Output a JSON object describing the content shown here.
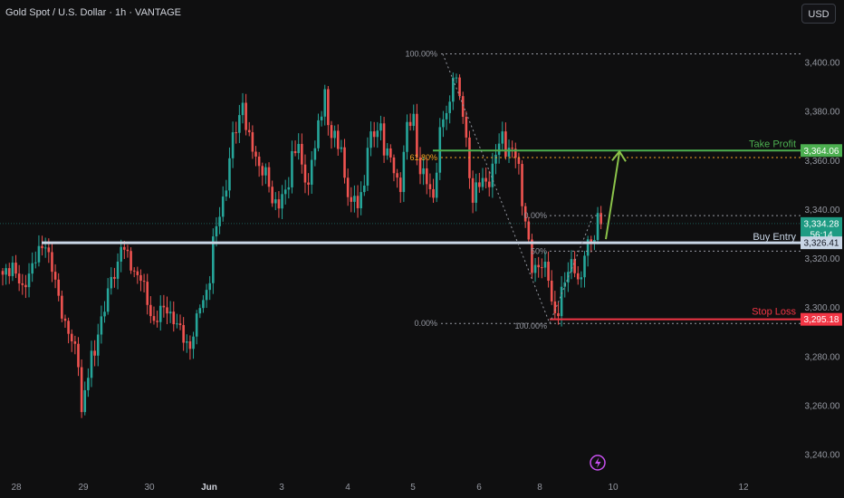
{
  "header": {
    "symbol_title": "Gold Spot / U.S. Dollar · 1h · VANTAGE",
    "currency_label": "USD"
  },
  "chart_data": {
    "type": "candlestick",
    "y_ticks": [
      "3,400.00",
      "3,380.00",
      "3,360.00",
      "3,340.00",
      "3,320.00",
      "3,300.00",
      "3,280.00",
      "3,260.00",
      "3,240.00"
    ],
    "y_tick_values": [
      3400,
      3380,
      3360,
      3340,
      3320,
      3300,
      3280,
      3260,
      3240
    ],
    "ylim": [
      3232,
      3415
    ],
    "x_ticks": [
      "28",
      "29",
      "30",
      "Jun",
      "3",
      "4",
      "5",
      "6",
      "8",
      "10",
      "12"
    ],
    "price_badges": {
      "take_profit": "3,364.06",
      "current_price": "3,334.28",
      "countdown": "56:14",
      "buy_entry": "3,326.41",
      "stop_loss": "3,295.18"
    },
    "annotations": {
      "take_profit": "Take Profit",
      "buy_entry": "Buy Entry",
      "stop_loss": "Stop Loss"
    },
    "fib_upper": {
      "level_100": "100.00%",
      "level_618": "61.80%"
    },
    "fib_lower": {
      "level_0_top": "0.00%",
      "level_mid": "50%",
      "level_100": "100.00%",
      "level_0_bottom": "0.00%"
    },
    "levels": {
      "take_profit": 3364.06,
      "buy_entry": 3326.41,
      "stop_loss": 3295.18,
      "current": 3334.28,
      "fib_high": 3403.5,
      "fib_618": 3361.2,
      "fib_lower_top": 3337.5,
      "fib_lower_bottom": 3293.5
    },
    "price_path": [
      [
        0,
        3312
      ],
      [
        3,
        3318
      ],
      [
        6,
        3306
      ],
      [
        8,
        3315
      ],
      [
        11,
        3322
      ],
      [
        13,
        3327
      ],
      [
        15,
        3316
      ],
      [
        17,
        3303
      ],
      [
        19,
        3294
      ],
      [
        21,
        3286
      ],
      [
        23,
        3278
      ],
      [
        24,
        3258
      ],
      [
        25,
        3266
      ],
      [
        27,
        3279
      ],
      [
        28,
        3281
      ],
      [
        29,
        3291
      ],
      [
        31,
        3300
      ],
      [
        33,
        3311
      ],
      [
        35,
        3318
      ],
      [
        36,
        3326
      ],
      [
        38,
        3320
      ],
      [
        40,
        3315
      ],
      [
        42,
        3312
      ],
      [
        44,
        3302
      ],
      [
        46,
        3294
      ],
      [
        48,
        3298
      ],
      [
        50,
        3300
      ],
      [
        52,
        3295
      ],
      [
        54,
        3290
      ],
      [
        56,
        3286
      ],
      [
        57,
        3284
      ],
      [
        59,
        3294
      ],
      [
        60,
        3301
      ],
      [
        62,
        3307
      ],
      [
        63,
        3312
      ],
      [
        64,
        3326
      ],
      [
        66,
        3339
      ],
      [
        68,
        3350
      ],
      [
        70,
        3369
      ],
      [
        72,
        3378
      ],
      [
        73,
        3385
      ],
      [
        74,
        3373
      ],
      [
        75,
        3368
      ],
      [
        77,
        3362
      ],
      [
        78,
        3358
      ],
      [
        80,
        3354
      ],
      [
        82,
        3344
      ],
      [
        84,
        3343
      ],
      [
        86,
        3346
      ],
      [
        87,
        3351
      ],
      [
        88,
        3363
      ],
      [
        90,
        3367
      ],
      [
        91,
        3355
      ],
      [
        93,
        3350
      ],
      [
        94,
        3361
      ],
      [
        96,
        3373
      ],
      [
        97,
        3378
      ],
      [
        98,
        3390
      ],
      [
        99,
        3374
      ],
      [
        101,
        3370
      ],
      [
        102,
        3363
      ],
      [
        103,
        3367
      ],
      [
        104,
        3352
      ],
      [
        106,
        3343
      ],
      [
        108,
        3342
      ],
      [
        110,
        3351
      ],
      [
        111,
        3367
      ],
      [
        113,
        3370
      ],
      [
        115,
        3375
      ],
      [
        116,
        3365
      ],
      [
        118,
        3360
      ],
      [
        120,
        3352
      ],
      [
        121,
        3350
      ],
      [
        122,
        3363
      ],
      [
        123,
        3373
      ],
      [
        125,
        3378
      ],
      [
        126,
        3363
      ],
      [
        127,
        3356
      ],
      [
        129,
        3351
      ],
      [
        131,
        3345
      ],
      [
        132,
        3358
      ],
      [
        133,
        3371
      ],
      [
        134,
        3376
      ],
      [
        135,
        3380
      ],
      [
        136,
        3383
      ],
      [
        137,
        3397
      ],
      [
        138,
        3393
      ],
      [
        139,
        3384
      ],
      [
        140,
        3379
      ],
      [
        141,
        3368
      ],
      [
        142,
        3355
      ],
      [
        143,
        3344
      ],
      [
        144,
        3348
      ],
      [
        146,
        3352
      ],
      [
        148,
        3352
      ],
      [
        149,
        3356
      ],
      [
        150,
        3362
      ],
      [
        151,
        3367
      ],
      [
        152,
        3371
      ],
      [
        153,
        3365
      ],
      [
        155,
        3363
      ],
      [
        156,
        3362
      ],
      [
        157,
        3357
      ],
      [
        158,
        3344
      ],
      [
        159,
        3336
      ],
      [
        160,
        3325
      ],
      [
        161,
        3315
      ],
      [
        162,
        3316
      ],
      [
        164,
        3319
      ],
      [
        165,
        3316
      ],
      [
        166,
        3311
      ],
      [
        167,
        3302
      ],
      [
        168,
        3297
      ],
      [
        169,
        3300
      ],
      [
        170,
        3307
      ],
      [
        171,
        3309
      ],
      [
        172,
        3315
      ],
      [
        173,
        3318
      ],
      [
        174,
        3317
      ],
      [
        175,
        3312
      ],
      [
        176,
        3310
      ],
      [
        177,
        3322
      ],
      [
        178,
        3326
      ],
      [
        180,
        3330
      ],
      [
        181,
        3336
      ],
      [
        182,
        3334
      ]
    ]
  }
}
